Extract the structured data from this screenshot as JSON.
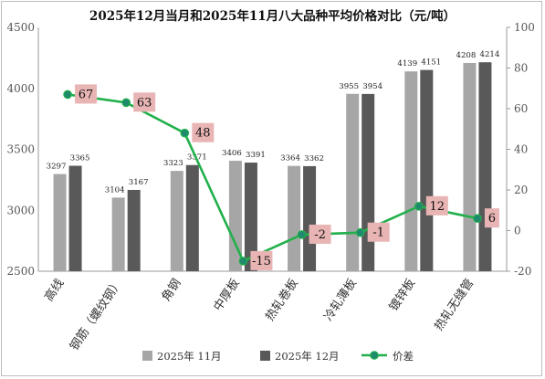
{
  "chart_data": {
    "type": "bar",
    "title": "2025年12月当月和2025年11月八大品种平均价格对比（元/吨）",
    "categories": [
      "高线",
      "钢筋（螺纹钢）",
      "角钢",
      "中厚板",
      "热轧卷板",
      "冷轧薄板",
      "镀锌板",
      "热轧无缝管"
    ],
    "series": [
      {
        "name": "2025年 11月",
        "type": "bar",
        "axis": "left",
        "color": "#a6a6a6",
        "values": [
          3297,
          3104,
          3323,
          3406,
          3364,
          3955,
          4139,
          4208
        ]
      },
      {
        "name": "2025年 12月",
        "type": "bar",
        "axis": "left",
        "color": "#595959",
        "values": [
          3365,
          3167,
          3371,
          3391,
          3362,
          3954,
          4151,
          4214
        ]
      },
      {
        "name": "价差",
        "type": "line",
        "axis": "right",
        "color": "#21b04b",
        "values": [
          67,
          63,
          48,
          -15,
          -2,
          -1,
          12,
          6
        ]
      }
    ],
    "y_left": {
      "min": 2500,
      "max": 4500,
      "ticks": [
        2500,
        3000,
        3500,
        4000,
        4500
      ]
    },
    "y_right": {
      "min": -20,
      "max": 100,
      "ticks": [
        -20,
        0,
        20,
        40,
        60,
        80,
        100
      ]
    },
    "legend_position": "bottom",
    "grid": false,
    "diff_label_color": "#e8b4b4"
  }
}
